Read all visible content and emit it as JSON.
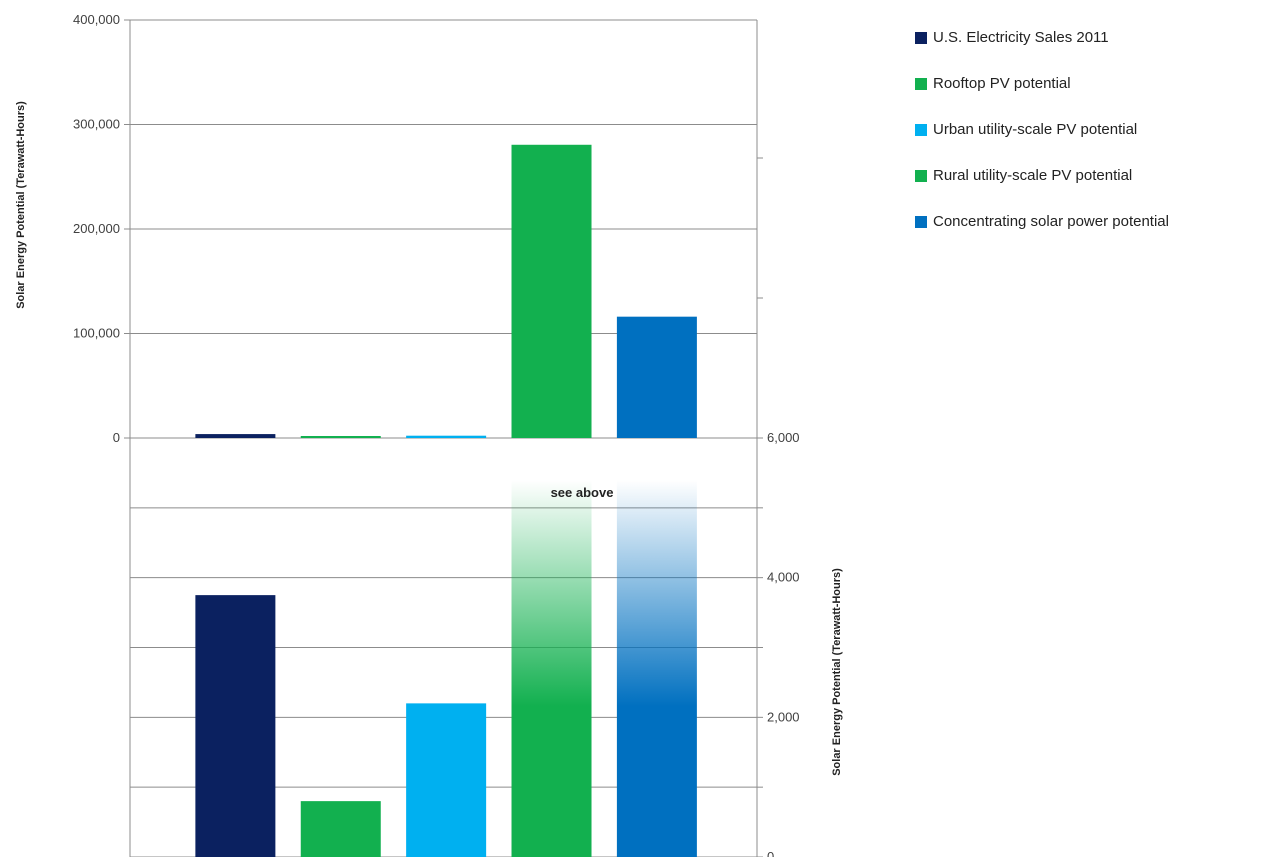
{
  "chart_data": {
    "type": "bar",
    "broken_axis": true,
    "series": [
      {
        "name": "U.S. Electricity Sales 2011",
        "value": 3750,
        "color": "#0b2160"
      },
      {
        "name": "Rooftop PV potential",
        "value": 800,
        "color": "#12b04f"
      },
      {
        "name": "Urban utility-scale PV potential",
        "value": 2200,
        "color": "#00b0f0"
      },
      {
        "name": "Rural utility-scale PV potential",
        "value": 280600,
        "color": "#12b04f"
      },
      {
        "name": "Concentrating solar power potential",
        "value": 116100,
        "color": "#0070c0"
      }
    ],
    "upper_panel": {
      "ylim": [
        0,
        400000
      ],
      "tick_labels": [
        "0",
        "100,000",
        "200,000",
        "300,000",
        "400,000"
      ],
      "ylabel": "Solar Energy Potential (Terawatt-Hours)"
    },
    "lower_panel": {
      "ylim": [
        0,
        6000
      ],
      "tick_labels": [
        "0",
        "2,000",
        "4,000",
        "6,000"
      ],
      "ylabel": "Solar Energy Potential (Terawatt-Hours)"
    },
    "annotation": "see above",
    "legend_position": "right"
  }
}
